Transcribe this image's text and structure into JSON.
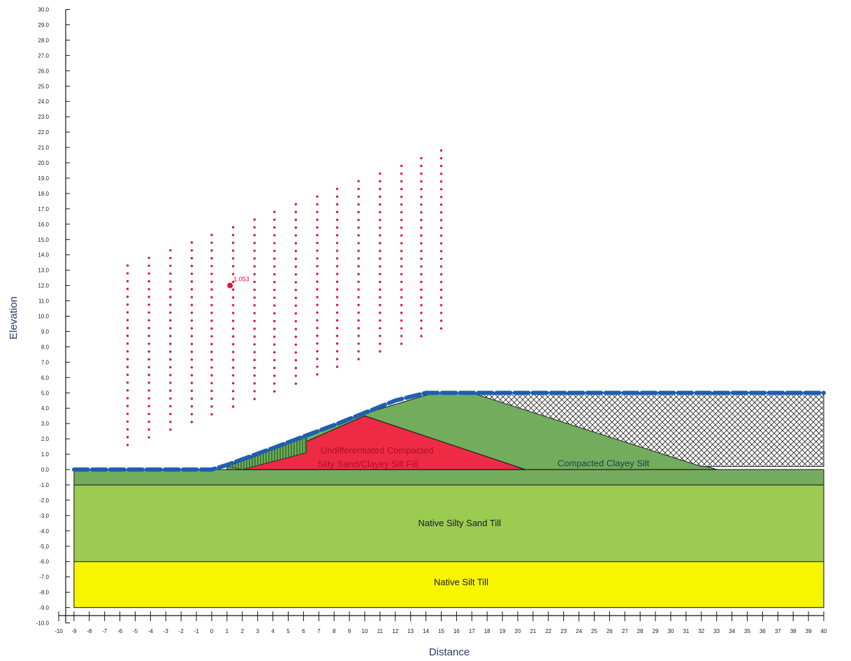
{
  "axes": {
    "x_title": "Distance",
    "y_title": "Elevation",
    "x_ticks": [
      -10,
      -9,
      -8,
      -7,
      -6,
      -5,
      -4,
      -3,
      -2,
      -1,
      0,
      1,
      2,
      3,
      4,
      5,
      6,
      7,
      8,
      9,
      10,
      11,
      12,
      13,
      14,
      15,
      16,
      17,
      18,
      19,
      20,
      21,
      22,
      23,
      24,
      25,
      26,
      27,
      28,
      29,
      30,
      31,
      32,
      33,
      34,
      35,
      36,
      37,
      38,
      39,
      40
    ],
    "y_ticks": [
      "30.0",
      "29.0",
      "28.0",
      "27.0",
      "26.0",
      "25.0",
      "24.0",
      "23.0",
      "22.0",
      "21.0",
      "20.0",
      "19.0",
      "18.0",
      "17.0",
      "16.0",
      "15.0",
      "14.0",
      "13.0",
      "12.0",
      "11.0",
      "10.0",
      "9.0",
      "8.0",
      "7.0",
      "6.0",
      "5.0",
      "4.0",
      "3.0",
      "2.0",
      "1.0",
      "0.0",
      "-1.0",
      "-2.0",
      "-3.0",
      "-4.0",
      "-5.0",
      "-6.0",
      "-7.0",
      "-8.0",
      "-9.0",
      "-10.0"
    ],
    "x_range": [
      -10,
      40
    ],
    "y_range": [
      -10,
      30
    ]
  },
  "regions": {
    "fill_label_line1": "Undifferentiated Compacted",
    "fill_label_line2": "Silty Sand/Clayey Silt Fill",
    "clayey_silt_label": "Compacted Clayey Silt",
    "sand_till_label": "Native Silty Sand Till",
    "silt_till_label": "Native Silt Till"
  },
  "critical_surface": {
    "fos_label": "1.053",
    "center": [
      1.2,
      12.0
    ]
  },
  "colors": {
    "upper_green": "#72ad5e",
    "sand_till": "#9ccb52",
    "silt_till": "#f7f500",
    "fill_red": "#ee2b45",
    "grid_dot": "#e3143a",
    "water_line": "#1f5fae",
    "axis_title": "#2b3a67"
  },
  "grid_columns": [
    {
      "x": -5.5,
      "top": 13.3,
      "bottom": 1.6
    },
    {
      "x": -4.1,
      "top": 13.8,
      "bottom": 2.1
    },
    {
      "x": -2.7,
      "top": 14.3,
      "bottom": 2.6
    },
    {
      "x": -1.3,
      "top": 14.8,
      "bottom": 3.1
    },
    {
      "x": 0.0,
      "top": 15.3,
      "bottom": 3.6
    },
    {
      "x": 1.4,
      "top": 15.8,
      "bottom": 4.1
    },
    {
      "x": 2.8,
      "top": 16.3,
      "bottom": 4.6
    },
    {
      "x": 4.1,
      "top": 16.8,
      "bottom": 5.1
    },
    {
      "x": 5.5,
      "top": 17.3,
      "bottom": 5.6
    },
    {
      "x": 6.9,
      "top": 17.8,
      "bottom": 6.2
    },
    {
      "x": 8.2,
      "top": 18.3,
      "bottom": 6.7
    },
    {
      "x": 9.6,
      "top": 18.8,
      "bottom": 7.2
    },
    {
      "x": 11.0,
      "top": 19.3,
      "bottom": 7.7
    },
    {
      "x": 12.4,
      "top": 19.8,
      "bottom": 8.2
    },
    {
      "x": 13.7,
      "top": 20.3,
      "bottom": 8.7
    },
    {
      "x": 15.0,
      "top": 20.8,
      "bottom": 9.2
    }
  ]
}
